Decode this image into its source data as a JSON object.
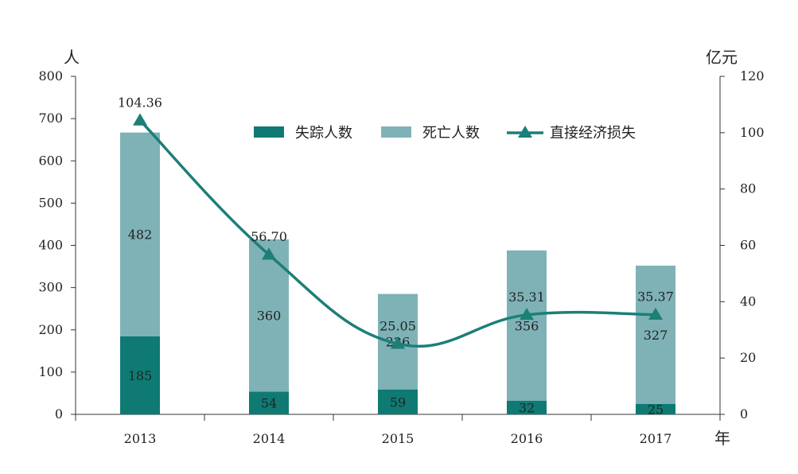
{
  "chart_data": {
    "type": "bar",
    "title": "",
    "categories": [
      "2013",
      "2014",
      "2015",
      "2016",
      "2017"
    ],
    "x_unit": "年",
    "y_left": {
      "unit": "人",
      "min": 0,
      "max": 800,
      "ticks": [
        "0",
        "100",
        "200",
        "300",
        "400",
        "500",
        "600",
        "700",
        "800"
      ]
    },
    "y_right": {
      "unit": "亿元",
      "min": 0,
      "max": 120,
      "ticks": [
        "0",
        "20",
        "40",
        "60",
        "80",
        "100",
        "120"
      ]
    },
    "series": [
      {
        "name": "失踪人数",
        "kind": "bar",
        "axis": "left",
        "color": "#0e7a73",
        "values": [
          185,
          54,
          59,
          32,
          25
        ]
      },
      {
        "name": "死亡人数",
        "kind": "bar",
        "axis": "left",
        "color": "#7fb2b7",
        "values": [
          482,
          360,
          226,
          356,
          327
        ]
      },
      {
        "name": "直接经济损失",
        "kind": "line",
        "axis": "right",
        "color": "#1c7f78",
        "marker": "triangle",
        "values": [
          104.36,
          56.7,
          25.05,
          35.31,
          35.37
        ],
        "labels": [
          "104.36",
          "56.70",
          "25.05",
          "35.31",
          "35.37"
        ]
      }
    ],
    "legend_placement": "top-center",
    "grid": false
  }
}
